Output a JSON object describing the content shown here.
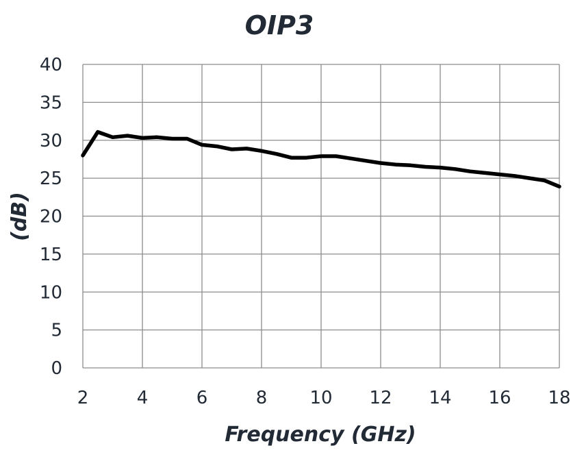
{
  "chart_data": {
    "type": "line",
    "title": "OIP3",
    "xlabel": "Frequency (GHz)",
    "ylabel": "(dB)",
    "xlim": [
      2,
      18
    ],
    "ylim": [
      0,
      40
    ],
    "x_ticks": [
      "2",
      "4",
      "6",
      "8",
      "10",
      "12",
      "14",
      "16",
      "18"
    ],
    "y_ticks": [
      "0",
      "5",
      "10",
      "15",
      "20",
      "25",
      "30",
      "35",
      "40"
    ],
    "grid": true,
    "legend": "none",
    "line_color": "#000000",
    "series": [
      {
        "x": [
          2.0,
          2.5,
          3.0,
          3.5,
          4.0,
          4.5,
          5.0,
          5.5,
          6.0,
          6.5,
          7.0,
          7.5,
          8.0,
          8.5,
          9.0,
          9.5,
          10.0,
          10.5,
          11.0,
          11.5,
          12.0,
          12.5,
          13.0,
          13.5,
          14.0,
          14.5,
          15.0,
          15.5,
          16.0,
          16.5,
          17.0,
          17.5,
          18.0
        ],
        "y": [
          28.0,
          31.1,
          30.4,
          30.6,
          30.3,
          30.4,
          30.2,
          30.2,
          29.4,
          29.2,
          28.8,
          28.9,
          28.6,
          28.2,
          27.7,
          27.7,
          27.9,
          27.9,
          27.6,
          27.3,
          27.0,
          26.8,
          26.7,
          26.5,
          26.4,
          26.2,
          25.9,
          25.7,
          25.5,
          25.3,
          25.0,
          24.7,
          23.9
        ]
      }
    ]
  }
}
